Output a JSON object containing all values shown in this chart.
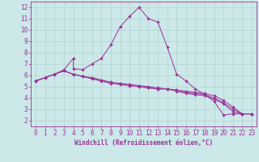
{
  "xlabel": "Windchill (Refroidissement éolien,°C)",
  "xlim": [
    -0.5,
    23.5
  ],
  "ylim": [
    1.5,
    12.5
  ],
  "xticks": [
    0,
    1,
    2,
    3,
    4,
    5,
    6,
    7,
    8,
    9,
    10,
    11,
    12,
    13,
    14,
    15,
    16,
    17,
    18,
    19,
    20,
    21,
    22,
    23
  ],
  "yticks": [
    2,
    3,
    4,
    5,
    6,
    7,
    8,
    9,
    10,
    11,
    12
  ],
  "bg_color": "#cce8e8",
  "line_color": "#993399",
  "series": [
    {
      "x": [
        0,
        1,
        2,
        3,
        4,
        4,
        5,
        6,
        7,
        8,
        9,
        10,
        11,
        12,
        13,
        14,
        15,
        16,
        17,
        18,
        19,
        20,
        21,
        22,
        23
      ],
      "y": [
        5.5,
        5.8,
        6.1,
        6.5,
        7.5,
        6.6,
        6.5,
        7.0,
        7.5,
        8.7,
        10.3,
        11.2,
        12.0,
        11.0,
        10.7,
        8.5,
        6.1,
        5.5,
        4.8,
        4.3,
        3.7,
        2.5,
        2.6,
        2.6,
        2.6
      ]
    },
    {
      "x": [
        0,
        1,
        2,
        3,
        4,
        5,
        6,
        7,
        8,
        9,
        10,
        11,
        12,
        13,
        14,
        15,
        16,
        17,
        18,
        19,
        20,
        21,
        22,
        23
      ],
      "y": [
        5.5,
        5.8,
        6.1,
        6.4,
        6.1,
        5.9,
        5.8,
        5.6,
        5.4,
        5.3,
        5.2,
        5.1,
        5.0,
        4.9,
        4.8,
        4.7,
        4.6,
        4.5,
        4.4,
        4.2,
        3.8,
        3.2,
        2.6,
        2.6
      ]
    },
    {
      "x": [
        0,
        1,
        2,
        3,
        4,
        5,
        6,
        7,
        8,
        9,
        10,
        11,
        12,
        13,
        14,
        15,
        16,
        17,
        18,
        19,
        20,
        21,
        22,
        23
      ],
      "y": [
        5.5,
        5.8,
        6.1,
        6.4,
        6.1,
        5.9,
        5.7,
        5.5,
        5.3,
        5.2,
        5.1,
        5.0,
        4.9,
        4.8,
        4.8,
        4.7,
        4.5,
        4.4,
        4.3,
        4.0,
        3.6,
        3.0,
        2.6,
        2.6
      ]
    },
    {
      "x": [
        0,
        1,
        2,
        3,
        4,
        5,
        6,
        7,
        8,
        9,
        10,
        11,
        12,
        13,
        14,
        15,
        16,
        17,
        18,
        19,
        20,
        21,
        22,
        23
      ],
      "y": [
        5.5,
        5.8,
        6.1,
        6.4,
        6.1,
        5.9,
        5.7,
        5.5,
        5.3,
        5.2,
        5.1,
        5.0,
        4.9,
        4.8,
        4.8,
        4.6,
        4.4,
        4.3,
        4.2,
        3.9,
        3.5,
        2.8,
        2.6,
        2.6
      ]
    }
  ],
  "tick_fontsize": 5.5,
  "xlabel_fontsize": 5.5
}
